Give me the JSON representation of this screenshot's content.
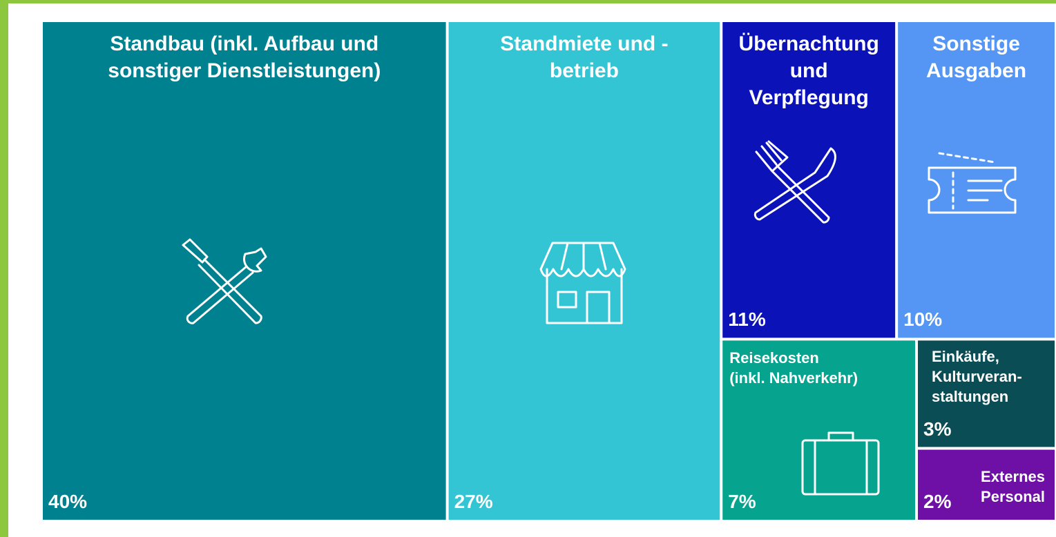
{
  "chart_data": {
    "type": "treemap",
    "categories": [
      "Standbau (inkl. Aufbau und\nsonstiger Dienstleistungen)",
      "Standmiete und -\nbetrieb",
      "Übernachtung\nund\nVerpflegung",
      "Sonstige\nAusgaben",
      "Reisekosten\n(inkl. Nahverkehr)",
      "Einkäufe,\nKulturveran-\nstaltungen",
      "Externes\nPersonal"
    ],
    "values": [
      40,
      27,
      11,
      10,
      7,
      3,
      2
    ],
    "value_labels": [
      "40%",
      "27%",
      "11%",
      "10%",
      "7%",
      "3%",
      "2%"
    ],
    "colors": [
      "#00818f",
      "#33c5d4",
      "#0a12b8",
      "#5596f5",
      "#06a48f",
      "#0a4d55",
      "#6e10a6"
    ]
  }
}
